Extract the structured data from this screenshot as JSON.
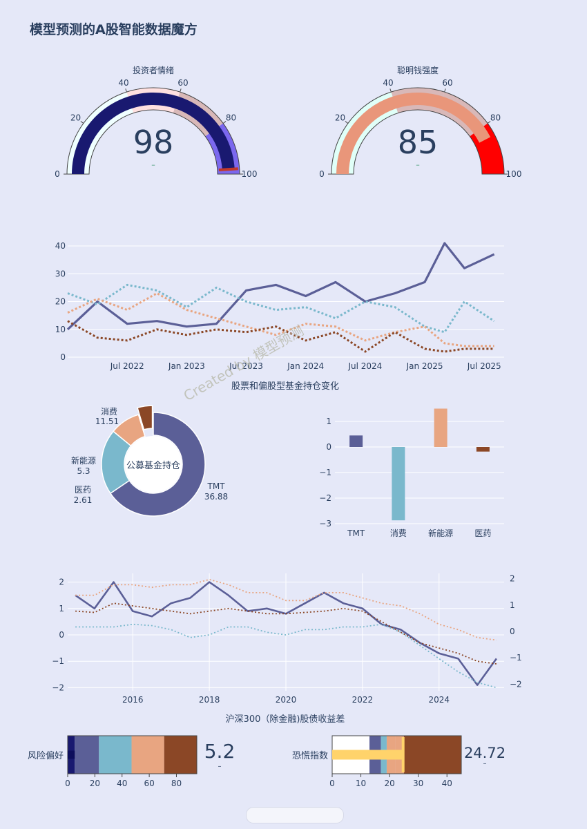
{
  "page": {
    "title": "模型预测的A股智能数据魔方"
  },
  "gauges": [
    {
      "title": "投资者情绪",
      "value": 98,
      "delta": "–",
      "ticks": [
        "0",
        "20",
        "40",
        "60",
        "80",
        "100"
      ],
      "bar_color": "#191970"
    },
    {
      "title": "聪明钱强度",
      "value": 85,
      "delta": "–",
      "ticks": [
        "0",
        "20",
        "40",
        "60",
        "80",
        "100"
      ],
      "bar_color": "#e9967a"
    }
  ],
  "line_chart": {
    "title": "股票和偏股型基金持仓变化",
    "y_ticks": [
      "0",
      "10",
      "20",
      "30",
      "40"
    ],
    "x_ticks": [
      "Jul 2022",
      "Jan 2023",
      "Jul 2023",
      "Jan 2024",
      "Jul 2024",
      "Jan 2025",
      "Jul 2025"
    ],
    "watermark": "Created by 模型预测"
  },
  "donut": {
    "center_label": "公募基金持仓",
    "slices": [
      {
        "name": "TMT",
        "value": "36.88",
        "color": "#5b5f97"
      },
      {
        "name": "消费",
        "value": "11.51",
        "color": "#7ab8cc"
      },
      {
        "name": "新能源",
        "value": "5.3",
        "color": "#e8a581"
      },
      {
        "name": "医药",
        "value": "2.61",
        "color": "#8b4726"
      }
    ]
  },
  "bar_chart": {
    "y_ticks": [
      "1",
      "0",
      "−1",
      "−2",
      "−3"
    ],
    "categories": [
      "TMT",
      "消费",
      "新能源",
      "医药"
    ]
  },
  "spread_chart": {
    "title": "沪深300（除金融)股债收益差",
    "y_left_ticks": [
      "2",
      "1",
      "0",
      "−1",
      "−2"
    ],
    "y_right_ticks": [
      "2",
      "1",
      "0",
      "−1",
      "−2"
    ],
    "x_ticks": [
      "2016",
      "2018",
      "2020",
      "2022",
      "2024"
    ]
  },
  "bullets": [
    {
      "label": "风险偏好",
      "value": "5.2",
      "delta": "–",
      "ticks": [
        "0",
        "20",
        "40",
        "60",
        "80"
      ]
    },
    {
      "label": "恐慌指数",
      "value": "24.72",
      "delta": "–",
      "ticks": [
        "0",
        "10",
        "20",
        "30",
        "40"
      ]
    }
  ],
  "colors": {
    "navy": "#191970",
    "purple": "#5b5f97",
    "teal": "#7ab8cc",
    "salmon": "#e8a581",
    "brown": "#8b4726",
    "red": "#ff0000",
    "yellow": "#ffd36b"
  },
  "chart_data": [
    {
      "type": "gauge",
      "title": "投资者情绪",
      "value": 98,
      "range": [
        0,
        100
      ],
      "steps": [
        [
          0,
          20
        ],
        [
          20,
          40
        ],
        [
          40,
          60
        ],
        [
          60,
          80
        ],
        [
          80,
          100
        ]
      ],
      "threshold": 98
    },
    {
      "type": "gauge",
      "title": "聪明钱强度",
      "value": 85,
      "range": [
        0,
        100
      ],
      "steps": [
        [
          0,
          20
        ],
        [
          20,
          40
        ],
        [
          40,
          60
        ],
        [
          60,
          80
        ],
        [
          80,
          100
        ]
      ]
    },
    {
      "type": "line",
      "title": "股票和偏股型基金持仓变化",
      "ylim": [
        0,
        42
      ],
      "x": [
        "2022-01",
        "2022-04",
        "2022-07",
        "2022-10",
        "2023-01",
        "2023-04",
        "2023-07",
        "2023-10",
        "2024-01",
        "2024-04",
        "2024-07",
        "2024-10",
        "2025-01",
        "2025-03",
        "2025-05",
        "2025-08"
      ],
      "series": [
        {
          "values": [
            10,
            20,
            12,
            13,
            11,
            12,
            24,
            26,
            22,
            27,
            20,
            23,
            27,
            41,
            32,
            37
          ]
        },
        {
          "values": [
            23,
            19,
            26,
            24,
            18,
            25,
            20,
            17,
            18,
            14,
            20,
            18,
            11,
            9,
            20,
            13
          ]
        },
        {
          "values": [
            16,
            21,
            17,
            23,
            17,
            14,
            11,
            8,
            12,
            11,
            6,
            9,
            11,
            5,
            4,
            4
          ]
        },
        {
          "values": [
            13,
            7,
            6,
            10,
            8,
            10,
            9,
            11,
            6,
            9,
            2,
            9,
            3,
            2,
            3,
            3
          ]
        }
      ]
    },
    {
      "type": "pie",
      "hole": true,
      "categories": [
        "TMT",
        "消费",
        "新能源",
        "医药"
      ],
      "values": [
        36.88,
        11.51,
        5.3,
        2.61
      ]
    },
    {
      "type": "bar",
      "categories": [
        "TMT",
        "消费",
        "新能源",
        "医药"
      ],
      "values": [
        0.45,
        -2.87,
        1.5,
        -0.18
      ],
      "ylim": [
        -3,
        1.5
      ]
    },
    {
      "type": "line",
      "title": "沪深300（除金融)股债收益差",
      "ylim": [
        -2.1,
        2.2
      ],
      "x": [
        2014.5,
        2015,
        2015.5,
        2016,
        2016.5,
        2017,
        2017.5,
        2018,
        2018.5,
        2019,
        2019.5,
        2020,
        2020.5,
        2021,
        2021.5,
        2022,
        2022.5,
        2023,
        2023.5,
        2024,
        2024.5,
        2025,
        2025.5
      ],
      "series": [
        {
          "values": [
            1.5,
            1.0,
            2.0,
            0.9,
            0.7,
            1.2,
            1.4,
            2.0,
            1.5,
            0.9,
            1.0,
            0.8,
            1.2,
            1.6,
            1.2,
            1.0,
            0.4,
            0.2,
            -0.3,
            -0.7,
            -0.9,
            -1.9,
            -0.9
          ]
        },
        {
          "values": [
            1.5,
            1.5,
            1.9,
            1.9,
            1.8,
            1.9,
            1.9,
            2.1,
            1.9,
            1.6,
            1.6,
            1.3,
            1.3,
            1.6,
            1.6,
            1.4,
            1.2,
            1.1,
            0.8,
            0.4,
            0.2,
            -0.1,
            -0.2
          ]
        },
        {
          "values": [
            0.9,
            0.85,
            1.2,
            1.1,
            1.0,
            0.9,
            0.8,
            0.9,
            1.0,
            0.9,
            0.8,
            0.8,
            0.85,
            0.9,
            1.0,
            0.9,
            0.5,
            0.1,
            -0.3,
            -0.5,
            -0.7,
            -1.0,
            -1.1
          ]
        },
        {
          "values": [
            0.3,
            0.3,
            0.3,
            0.4,
            0.35,
            0.2,
            -0.1,
            0.0,
            0.3,
            0.3,
            0.1,
            0.0,
            0.2,
            0.2,
            0.3,
            0.3,
            0.4,
            0.1,
            -0.4,
            -0.9,
            -1.4,
            -1.8,
            -2.0
          ]
        }
      ]
    },
    {
      "type": "bar",
      "title": "风险偏好",
      "value": 5.2,
      "range": [
        0,
        95
      ],
      "steps": [
        [
          0,
          5.2
        ],
        [
          5.2,
          23
        ],
        [
          23,
          47
        ],
        [
          47,
          71
        ],
        [
          71,
          95
        ]
      ]
    },
    {
      "type": "bar",
      "title": "恐慌指数",
      "value": 24.72,
      "range": [
        0,
        45
      ],
      "steps": [
        [
          0,
          13
        ],
        [
          13,
          17
        ],
        [
          17,
          19
        ],
        [
          19,
          22
        ],
        [
          22,
          25
        ],
        [
          25,
          45
        ]
      ],
      "threshold": 24.72
    }
  ]
}
